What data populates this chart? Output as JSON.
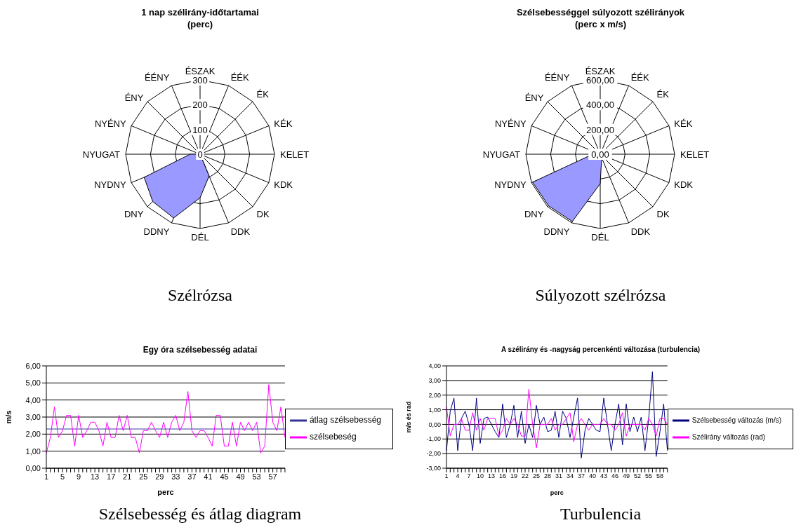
{
  "chart_data": [
    {
      "type": "radar",
      "title": "1 nap szélirány-időtartamai",
      "subtitle": "(perc)",
      "categories": [
        "ÉSZAK",
        "ÉÉK",
        "ÉK",
        "KÉK",
        "KELET",
        "KDK",
        "DK",
        "DDK",
        "DÉL",
        "DDNY",
        "DNY",
        "NYDNY",
        "NYUGAT",
        "NYÉNY",
        "ÉNY",
        "ÉÉNY"
      ],
      "series": [
        {
          "color": "#9999ff",
          "values": [
            0,
            0,
            0,
            0,
            0,
            0,
            0,
            95,
            176,
            279,
            270,
            244,
            40,
            0,
            0,
            0
          ]
        }
      ],
      "ylim": [
        0,
        300
      ],
      "yticks": [
        0,
        100,
        200,
        300
      ],
      "grid": true,
      "annotations": [
        "Szélrózsa"
      ]
    },
    {
      "type": "radar",
      "title": "Szélsebességgel súlyozott szélirányok",
      "subtitle": "(perc x m/s)",
      "categories": [
        "ÉSZAK",
        "ÉÉK",
        "ÉK",
        "KÉK",
        "KELET",
        "KDK",
        "DK",
        "DDK",
        "DÉL",
        "DDNY",
        "DNY",
        "NYDNY",
        "NYUGAT",
        "NYÉNY",
        "ÉNY",
        "ÉÉNY"
      ],
      "series": [
        {
          "color": "#9999ff",
          "values": [
            0,
            0,
            0,
            0,
            0,
            0,
            0,
            30,
            238,
            588,
            589,
            590,
            60,
            0,
            0,
            0
          ]
        }
      ],
      "ylim": [
        0,
        600
      ],
      "yticks": [
        {
          "value": 0,
          "label": "0,00"
        },
        {
          "value": 200,
          "label": "200,00"
        },
        {
          "value": 400,
          "label": "400,00"
        },
        {
          "value": 600,
          "label": "600,00"
        }
      ],
      "grid": true,
      "annotations": [
        "Súlyozott szélrózsa"
      ]
    },
    {
      "type": "line",
      "title": "Egy óra szélsebesség adatai",
      "xlabel": "perc",
      "ylabel": "m/s",
      "categories": [
        "1",
        null,
        null,
        null,
        "5",
        null,
        null,
        null,
        "9",
        null,
        null,
        null,
        "13",
        null,
        null,
        null,
        "17",
        null,
        null,
        null,
        "21",
        null,
        null,
        null,
        "25",
        null,
        null,
        null,
        "29",
        null,
        null,
        null,
        "33",
        null,
        null,
        null,
        "37",
        null,
        null,
        null,
        "41",
        null,
        null,
        null,
        "45",
        null,
        null,
        null,
        "49",
        null,
        null,
        null,
        "53",
        null,
        null,
        null,
        "57",
        null,
        null,
        null
      ],
      "series": [
        {
          "name": "átlag szélsebesség",
          "color": "#333399",
          "values": [
            2.3,
            2.3,
            2.3,
            2.3,
            2.3,
            2.3,
            2.3,
            2.3,
            2.3,
            2.3,
            2.3,
            2.3,
            2.3,
            2.3,
            2.3,
            2.3,
            2.3,
            2.3,
            2.3,
            2.3,
            2.3,
            2.3,
            2.3,
            2.3,
            2.3,
            2.3,
            2.3,
            2.3,
            2.3,
            2.3,
            2.3,
            2.3,
            2.3,
            2.3,
            2.3,
            2.3,
            2.3,
            2.3,
            2.3,
            2.3,
            2.3,
            2.3,
            2.3,
            2.3,
            2.3,
            2.3,
            2.3,
            2.3,
            2.3,
            2.3,
            2.3,
            2.3,
            2.3,
            2.3,
            2.3,
            2.3,
            2.3,
            2.3,
            2.3,
            2.3
          ]
        },
        {
          "name": "szélsebeség",
          "color": "#ff00ff",
          "values": [
            0.9,
            1.8,
            3.6,
            1.8,
            2.2,
            3.1,
            3.1,
            1.3,
            3.1,
            1.8,
            2.2,
            2.7,
            2.7,
            2.2,
            1.3,
            2.7,
            1.8,
            1.8,
            3.1,
            2.2,
            3.1,
            1.8,
            1.8,
            0.9,
            2.2,
            2.2,
            2.7,
            2.2,
            1.8,
            2.7,
            1.8,
            2.7,
            3.1,
            2.2,
            2.7,
            4.5,
            2.2,
            1.8,
            2.2,
            2.2,
            1.8,
            1.3,
            3.1,
            3.1,
            1.3,
            1.3,
            2.7,
            1.3,
            2.7,
            2.2,
            2.7,
            2.2,
            2.7,
            0.9,
            1.3,
            4.9,
            2.7,
            2.2,
            3.6,
            1.8
          ]
        }
      ],
      "ylim": [
        0,
        6
      ],
      "yticks": [
        {
          "value": 0,
          "label": "0,00"
        },
        {
          "value": 1,
          "label": "1,00"
        },
        {
          "value": 2,
          "label": "2,00"
        },
        {
          "value": 3,
          "label": "3,00"
        },
        {
          "value": 4,
          "label": "4,00"
        },
        {
          "value": 5,
          "label": "5,00"
        },
        {
          "value": 6,
          "label": "6,00"
        }
      ],
      "grid": "y",
      "legend": "right",
      "annotations": [
        "Szélsebesség és átlag diagram"
      ]
    },
    {
      "type": "line",
      "title": "A szélirány és -nagyság percenkénti változása (turbulencia)",
      "xlabel": "perc",
      "ylabel": "m/s és rad",
      "categories": [
        "1",
        null,
        null,
        "4",
        null,
        null,
        "7",
        null,
        null,
        "10",
        null,
        null,
        "13",
        null,
        null,
        "16",
        null,
        null,
        "19",
        null,
        null,
        "22",
        null,
        null,
        "25",
        null,
        null,
        "28",
        null,
        null,
        "31",
        null,
        null,
        "34",
        null,
        null,
        "37",
        null,
        null,
        "40",
        null,
        null,
        "43",
        null,
        null,
        "46",
        null,
        null,
        "49",
        null,
        null,
        "52",
        null,
        null,
        "55",
        null,
        null,
        "58",
        null,
        null
      ],
      "series": [
        {
          "name": "Szélsebesség változás (m/s)",
          "color": "#000080",
          "values": [
            -1.8,
            0.9,
            1.8,
            -1.8,
            0.4,
            0.9,
            0,
            -1.8,
            1.8,
            -1.3,
            0.4,
            0.5,
            0,
            -0.5,
            -0.9,
            1.4,
            -0.9,
            0,
            1.3,
            -0.9,
            0.9,
            -1.3,
            0,
            -0.9,
            1.3,
            0,
            0.5,
            -0.5,
            -0.4,
            0.9,
            -0.9,
            0.9,
            0.4,
            -0.9,
            0.5,
            1.8,
            -2.3,
            -0.4,
            0.4,
            0,
            -0.4,
            -0.5,
            1.8,
            0,
            -1.8,
            0,
            1.4,
            -1.4,
            1.4,
            -0.5,
            0.5,
            -0.5,
            0.5,
            -1.8,
            0.4,
            3.6,
            -2.2,
            -0.5,
            1.4,
            -1.8
          ]
        },
        {
          "name": "Szélirány változás (rad)",
          "color": "#ff00ff",
          "values": [
            1.2,
            -0.8,
            0,
            0,
            0.4,
            -0.4,
            -0.4,
            0.8,
            -0.4,
            0.4,
            -0.4,
            0.4,
            0.4,
            0.4,
            -0.8,
            -0.4,
            0.4,
            0,
            0.4,
            0,
            -0.8,
            -0.8,
            2.4,
            0,
            -1.6,
            0,
            0,
            0,
            0.4,
            -0.4,
            0,
            0,
            0.4,
            0.8,
            -1.2,
            0,
            0.4,
            0,
            -0.4,
            0,
            0,
            0,
            0.4,
            0,
            0,
            -0.4,
            0,
            0.8,
            -0.8,
            0,
            0,
            0,
            0,
            -0.4,
            0.4,
            0,
            -0.8,
            0.4,
            0.4,
            0
          ]
        }
      ],
      "ylim": [
        -3,
        4
      ],
      "yticks": [
        {
          "value": -3,
          "label": "-3,00"
        },
        {
          "value": -2,
          "label": "-2,00"
        },
        {
          "value": -1,
          "label": "-1,00"
        },
        {
          "value": 0,
          "label": "0,00"
        },
        {
          "value": 1,
          "label": "1,00"
        },
        {
          "value": 2,
          "label": "2,00"
        },
        {
          "value": 3,
          "label": "3,00"
        },
        {
          "value": 4,
          "label": "4,00"
        }
      ],
      "grid": "y",
      "legend": "right",
      "annotations": [
        "Turbulencia"
      ]
    }
  ]
}
